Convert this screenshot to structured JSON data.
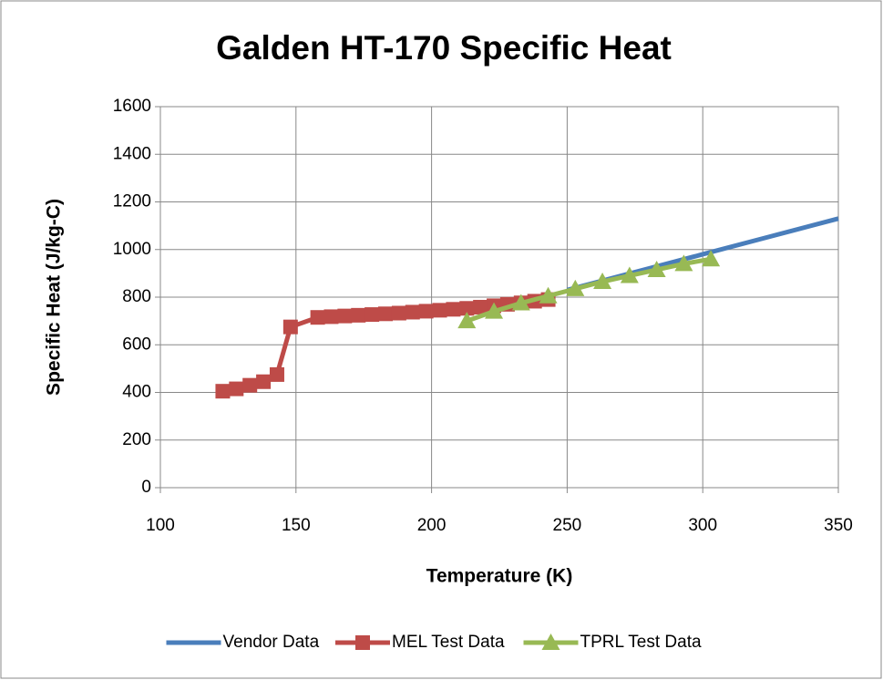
{
  "chart_data": {
    "type": "line",
    "title": "Galden HT-170 Specific Heat",
    "xlabel": "Temperature (K)",
    "ylabel": "Specific Heat (J/kg-C)",
    "xlim": [
      100,
      350
    ],
    "xticks": [
      100,
      150,
      200,
      250,
      300,
      350
    ],
    "ylim": [
      0,
      1600
    ],
    "yticks": [
      0,
      200,
      400,
      600,
      800,
      1000,
      1200,
      1400,
      1600
    ],
    "grid": true,
    "legend": "bottom",
    "series": [
      {
        "name": "Vendor Data",
        "color": "#4a7ebb",
        "marker": "none",
        "x": [
          250,
          275,
          300,
          325,
          350
        ],
        "values": [
          830,
          905,
          980,
          1055,
          1130
        ]
      },
      {
        "name": "MEL Test Data",
        "color": "#be4b48",
        "marker": "square",
        "x": [
          123,
          128,
          133,
          138,
          143,
          148,
          158,
          163,
          168,
          173,
          178,
          183,
          188,
          193,
          198,
          203,
          208,
          213,
          218,
          223,
          228,
          233,
          238,
          243
        ],
        "values": [
          405,
          415,
          430,
          445,
          475,
          675,
          715,
          718,
          721,
          724,
          727,
          730,
          733,
          737,
          741,
          745,
          749,
          753,
          758,
          764,
          770,
          776,
          783,
          790
        ]
      },
      {
        "name": "TPRL Test Data",
        "color": "#98b954",
        "marker": "triangle",
        "x": [
          213,
          223,
          233,
          243,
          253,
          263,
          273,
          283,
          293,
          303
        ],
        "values": [
          700,
          740,
          775,
          805,
          835,
          865,
          890,
          915,
          940,
          960
        ]
      }
    ]
  }
}
